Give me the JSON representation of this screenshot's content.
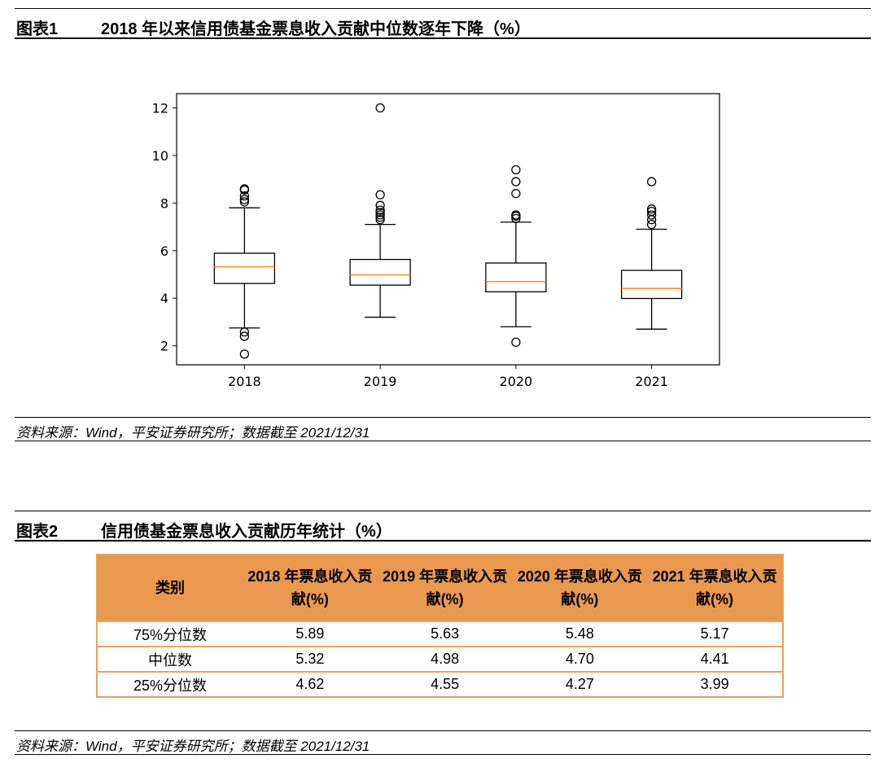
{
  "figure1": {
    "label": "图表1",
    "title": "2018 年以来信用债基金票息收入贡献中位数逐年下降（%）",
    "source": "资料来源：Wind，平安证券研究所；数据截至 2021/12/31"
  },
  "figure2": {
    "label": "图表2",
    "title": "信用债基金票息收入贡献历年统计（%）",
    "source": "资料来源：Wind，平安证券研究所；数据截至 2021/12/31",
    "table": {
      "headers": [
        "类别",
        "2018 年票息收入贡献(%)",
        "2019 年票息收入贡献(%)",
        "2020 年票息收入贡献(%)",
        "2021 年票息收入贡献(%)"
      ],
      "rows": [
        [
          "75%分位数",
          "5.89",
          "5.63",
          "5.48",
          "5.17"
        ],
        [
          "中位数",
          "5.32",
          "4.98",
          "4.70",
          "4.41"
        ],
        [
          "25%分位数",
          "4.62",
          "4.55",
          "4.27",
          "3.99"
        ]
      ]
    }
  },
  "chart_data": {
    "type": "boxplot",
    "title": "",
    "xlabel": "",
    "ylabel": "",
    "ylim": [
      1.2,
      12.6
    ],
    "yticks": [
      2,
      4,
      6,
      8,
      10,
      12
    ],
    "categories": [
      "2018",
      "2019",
      "2020",
      "2021"
    ],
    "series": [
      {
        "name": "2018",
        "whisker_low": 2.75,
        "q1": 4.62,
        "median": 5.32,
        "q3": 5.89,
        "whisker_high": 7.8,
        "outliers": [
          1.65,
          2.4,
          2.58,
          8.05,
          8.15,
          8.3,
          8.55,
          8.6
        ]
      },
      {
        "name": "2019",
        "whisker_low": 3.2,
        "q1": 4.55,
        "median": 4.98,
        "q3": 5.63,
        "whisker_high": 7.1,
        "outliers": [
          7.3,
          7.4,
          7.5,
          7.6,
          7.7,
          7.9,
          8.35,
          12.0
        ]
      },
      {
        "name": "2020",
        "whisker_low": 2.8,
        "q1": 4.27,
        "median": 4.7,
        "q3": 5.48,
        "whisker_high": 7.2,
        "outliers": [
          2.15,
          7.35,
          7.45,
          7.5,
          8.4,
          8.9,
          9.4
        ]
      },
      {
        "name": "2021",
        "whisker_low": 2.7,
        "q1": 3.99,
        "median": 4.41,
        "q3": 5.17,
        "whisker_high": 6.9,
        "outliers": [
          7.1,
          7.3,
          7.5,
          7.65,
          7.75,
          8.9
        ]
      }
    ],
    "box_color": "#000000",
    "median_color": "#ff8c1a",
    "grid": false,
    "legend": "none"
  }
}
